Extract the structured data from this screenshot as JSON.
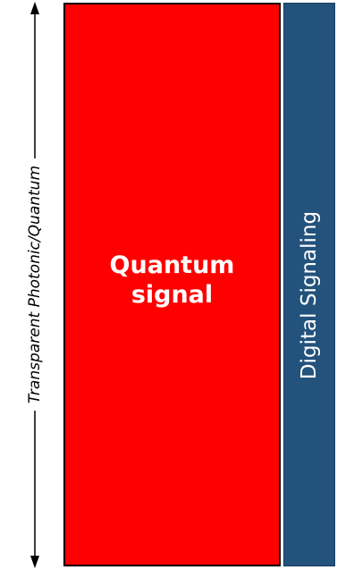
{
  "axis": {
    "label": "Transparent Photonic/Quantum",
    "color": "#000000"
  },
  "quantum_block": {
    "line1": "Quantum",
    "line2": "signal",
    "fill": "#ff0000"
  },
  "digital_block": {
    "label": "Digital Signaling",
    "fill": "#23527c"
  }
}
